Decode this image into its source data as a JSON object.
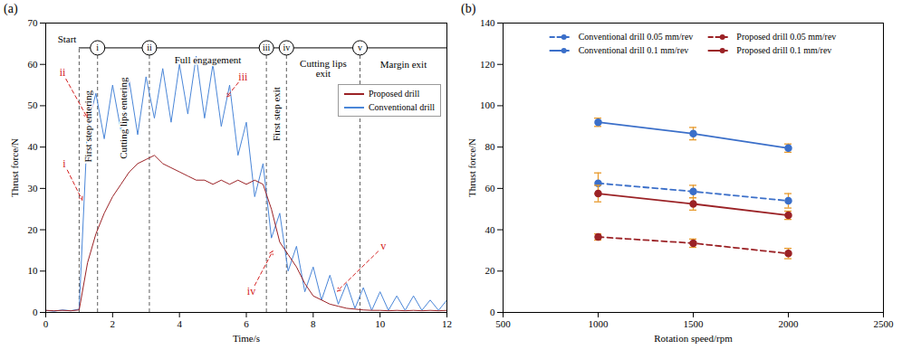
{
  "chart_data": [
    {
      "panel": "(a)",
      "type": "line",
      "x_label": "Time/s",
      "y_label": "Thrust force/N",
      "xlim": [
        0,
        12
      ],
      "xticks": [
        0,
        2,
        4,
        6,
        8,
        10,
        12
      ],
      "ylim": [
        0,
        70
      ],
      "yticks": [
        0,
        10,
        20,
        30,
        40,
        50,
        60,
        70
      ],
      "legend": "top-right",
      "x": [
        0,
        0.25,
        0.5,
        0.75,
        1,
        1.25,
        1.5,
        1.75,
        2,
        2.25,
        2.5,
        2.75,
        3,
        3.25,
        3.5,
        3.75,
        4,
        4.25,
        4.5,
        4.75,
        5,
        5.25,
        5.5,
        5.75,
        6,
        6.25,
        6.5,
        6.75,
        7,
        7.25,
        7.5,
        7.75,
        8,
        8.25,
        8.5,
        8.75,
        9,
        9.25,
        9.5,
        9.75,
        10,
        10.25,
        10.5,
        10.75,
        11,
        11.25,
        11.5,
        11.75,
        12
      ],
      "series": [
        {
          "name": "Proposed drill",
          "color": "#9b2226",
          "values": [
            0.5,
            0.4,
            0.5,
            0.4,
            0.6,
            12,
            19,
            24,
            28,
            31,
            34,
            36,
            37,
            38,
            36,
            35,
            34,
            33,
            32,
            32,
            31,
            32,
            31,
            32,
            31,
            32,
            31,
            25,
            17,
            14,
            11,
            7,
            4,
            3,
            2,
            1.5,
            1,
            0.8,
            0.6,
            0.5,
            0.5,
            0.4,
            0.5,
            0.4,
            0.5,
            0.4,
            0.5,
            0.4,
            0.5
          ]
        },
        {
          "name": "Conventional drill",
          "color": "#4a86d8",
          "values": [
            0.5,
            0.3,
            0.6,
            0.4,
            0.8,
            45,
            53,
            42,
            55,
            44,
            56,
            43,
            57,
            47,
            59,
            46,
            60,
            48,
            62,
            47,
            60,
            45,
            55,
            38,
            46,
            28,
            36,
            18,
            24,
            10,
            16,
            5,
            11,
            3,
            9,
            2,
            7,
            1,
            6,
            0.5,
            5,
            0.5,
            4,
            0.5,
            4,
            0.5,
            3,
            0.5,
            3
          ]
        }
      ],
      "stages": {
        "level": 64,
        "start": {
          "label": "Start",
          "x": 1.0
        },
        "markers": [
          {
            "label": "i",
            "x": 1.55
          },
          {
            "label": "ii",
            "x": 3.1
          },
          {
            "label": "iii",
            "x": 6.6
          },
          {
            "label": "iv",
            "x": 7.2
          },
          {
            "label": "v",
            "x": 9.4
          }
        ]
      },
      "regions": [
        {
          "label": "First step entering",
          "y": 45
        },
        {
          "label": "Cutting lips entering",
          "y": 47
        },
        {
          "label": "Full engagement",
          "y": 61
        },
        {
          "label": "First step exit",
          "y": 48
        },
        {
          "label": "Cutting lips exit",
          "y": 59
        },
        {
          "label": "Margin exit",
          "y": 60
        }
      ],
      "annotations": [
        {
          "text": "i",
          "x": 0.55,
          "y": 36,
          "target": [
            1.1,
            27
          ]
        },
        {
          "text": "ii",
          "x": 0.5,
          "y": 58,
          "target": [
            1.25,
            47
          ]
        },
        {
          "text": "iii",
          "x": 5.9,
          "y": 57,
          "target": [
            5.4,
            52
          ]
        },
        {
          "text": "iv",
          "x": 6.15,
          "y": 5,
          "target": [
            6.8,
            15
          ]
        },
        {
          "text": "v",
          "x": 10.1,
          "y": 16,
          "target": [
            8.7,
            5
          ]
        }
      ]
    },
    {
      "panel": "(b)",
      "type": "line",
      "x_label": "Rotation speed/rpm",
      "y_label": "Thrust force/N",
      "xlim": [
        500,
        2500
      ],
      "xticks": [
        500,
        1000,
        1500,
        2000,
        2500
      ],
      "ylim": [
        0,
        140
      ],
      "yticks": [
        0,
        20,
        40,
        60,
        80,
        100,
        120,
        140
      ],
      "legend": "top",
      "x": [
        1000,
        1500,
        2000
      ],
      "series": [
        {
          "name": "Conventional drill 0.05 mm/rev",
          "color": "#3b6fc9",
          "line_style": "dashed",
          "marker": "circle",
          "values": [
            62.5,
            58.5,
            54
          ],
          "errors": [
            5,
            3,
            3.5
          ]
        },
        {
          "name": "Proposed drill 0.05 mm/rev",
          "color": "#9b2226",
          "line_style": "dashed",
          "marker": "circle",
          "values": [
            36.5,
            33.5,
            28.5
          ],
          "errors": [
            1.5,
            2,
            2.5
          ]
        },
        {
          "name": "Conventional drill 0.1 mm/rev",
          "color": "#3b6fc9",
          "line_style": "solid",
          "marker": "circle",
          "values": [
            92,
            86.5,
            79.5
          ],
          "errors": [
            2,
            3,
            2
          ]
        },
        {
          "name": "Proposed drill 0.1 mm/rev",
          "color": "#9b2226",
          "line_style": "solid",
          "marker": "circle",
          "values": [
            57.5,
            52.5,
            47
          ],
          "errors": [
            4,
            3,
            2
          ]
        }
      ]
    }
  ]
}
